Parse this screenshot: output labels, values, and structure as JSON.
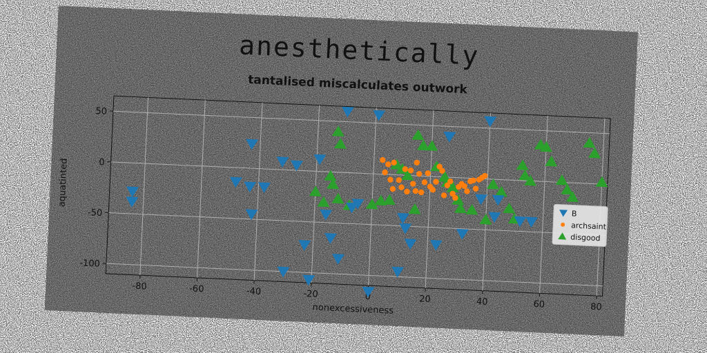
{
  "chart_data": {
    "type": "scatter",
    "title": "anesthetically",
    "subtitle": "tantalised miscalculates outwork",
    "xlabel": "nonexcessiveness",
    "ylabel": "aquatinted",
    "xlim": [
      -92,
      82
    ],
    "ylim": [
      -110,
      65
    ],
    "xticks": [
      -80,
      -60,
      -40,
      -20,
      0,
      20,
      40,
      60,
      80
    ],
    "yticks": [
      -100,
      -50,
      0,
      50
    ],
    "grid": true,
    "legend_position": "center-right",
    "series": [
      {
        "name": "B",
        "marker": "triangle-down",
        "color": "#1f77b4",
        "points": [
          [
            -84,
            -38
          ],
          [
            -84,
            -28
          ],
          [
            -43,
            24
          ],
          [
            -32,
            8
          ],
          [
            -27,
            5
          ],
          [
            -19,
            12
          ],
          [
            -48,
            -14
          ],
          [
            -43,
            -18
          ],
          [
            -38,
            -18
          ],
          [
            -42,
            -45
          ],
          [
            -10,
            60
          ],
          [
            1,
            58
          ],
          [
            26,
            40
          ],
          [
            40,
            57
          ],
          [
            -16,
            -42
          ],
          [
            -14,
            -65
          ],
          [
            -11,
            -85
          ],
          [
            -23,
            -73
          ],
          [
            -30,
            -100
          ],
          [
            -21,
            -107
          ],
          [
            0,
            -116
          ],
          [
            10,
            -95
          ],
          [
            11,
            -42
          ],
          [
            12,
            -52
          ],
          [
            14,
            -67
          ],
          [
            23,
            -67
          ],
          [
            32,
            -55
          ],
          [
            43,
            -37
          ],
          [
            38,
            -20
          ],
          [
            44,
            -20
          ],
          [
            52,
            -40
          ],
          [
            56,
            -40
          ],
          [
            -7,
            -34
          ],
          [
            -5,
            -30
          ]
        ]
      },
      {
        "name": "archsaint",
        "marker": "circle",
        "color": "#ff7f0e",
        "points": [
          [
            3,
            14
          ],
          [
            5,
            10
          ],
          [
            7,
            12
          ],
          [
            4,
            2
          ],
          [
            6,
            -5
          ],
          [
            7,
            -14
          ],
          [
            9,
            -5
          ],
          [
            10,
            -12
          ],
          [
            12,
            -16
          ],
          [
            13,
            5
          ],
          [
            14,
            -8
          ],
          [
            15,
            13
          ],
          [
            16,
            2
          ],
          [
            17,
            -16
          ],
          [
            18,
            -6
          ],
          [
            19,
            3
          ],
          [
            20,
            -10
          ],
          [
            21,
            -13
          ],
          [
            22,
            -5
          ],
          [
            23,
            10
          ],
          [
            24,
            6
          ],
          [
            25,
            -18
          ],
          [
            26,
            -8
          ],
          [
            27,
            -4
          ],
          [
            28,
            -16
          ],
          [
            29,
            -20
          ],
          [
            30,
            -9
          ],
          [
            31,
            -6
          ],
          [
            32,
            -8
          ],
          [
            33,
            -13
          ],
          [
            34,
            -3
          ],
          [
            35,
            -2
          ],
          [
            36,
            -10
          ],
          [
            37,
            -1
          ],
          [
            38,
            1
          ],
          [
            39,
            3
          ],
          [
            11,
            6
          ],
          [
            15,
            -15
          ]
        ]
      },
      {
        "name": "disgood",
        "marker": "triangle-up",
        "color": "#2ca02c",
        "points": [
          [
            -13,
            40
          ],
          [
            -12,
            28
          ],
          [
            -15,
            -4
          ],
          [
            -14,
            -12
          ],
          [
            -20,
            -20
          ],
          [
            -17,
            -30
          ],
          [
            -12,
            -26
          ],
          [
            -8,
            -32
          ],
          [
            0,
            -30
          ],
          [
            3,
            -26
          ],
          [
            6,
            -25
          ],
          [
            8,
            10
          ],
          [
            10,
            6
          ],
          [
            12,
            0
          ],
          [
            15,
            -33
          ],
          [
            15,
            40
          ],
          [
            17,
            30
          ],
          [
            20,
            30
          ],
          [
            22,
            10
          ],
          [
            25,
            0
          ],
          [
            26,
            -5
          ],
          [
            28,
            -10
          ],
          [
            30,
            -22
          ],
          [
            31,
            -30
          ],
          [
            35,
            -31
          ],
          [
            40,
            -40
          ],
          [
            42,
            -5
          ],
          [
            45,
            -12
          ],
          [
            48,
            -28
          ],
          [
            50,
            -38
          ],
          [
            52,
            15
          ],
          [
            53,
            5
          ],
          [
            55,
            0
          ],
          [
            58,
            36
          ],
          [
            60,
            34
          ],
          [
            62,
            20
          ],
          [
            66,
            2
          ],
          [
            68,
            -7
          ],
          [
            70,
            -14
          ],
          [
            75,
            40
          ],
          [
            77,
            30
          ],
          [
            80,
            2
          ]
        ]
      }
    ]
  }
}
